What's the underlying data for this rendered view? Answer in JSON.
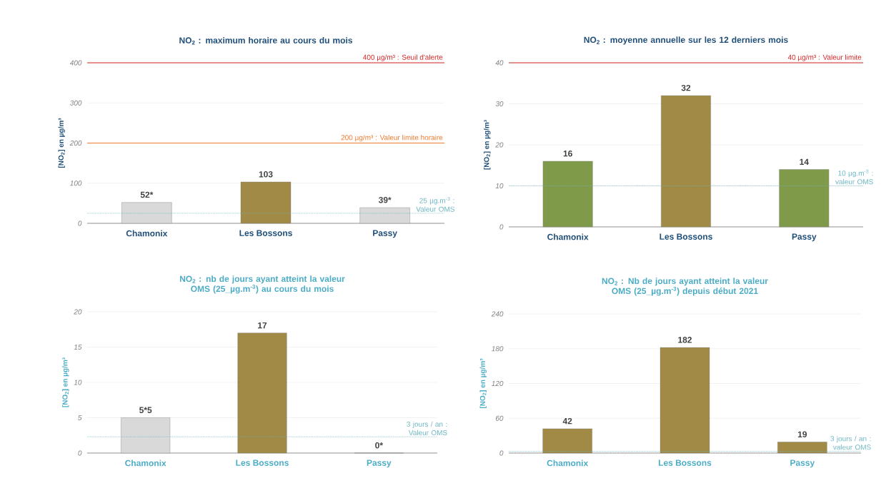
{
  "chart_data": [
    {
      "type": "bar",
      "title": "NO$_{2}$ : maximum horaire au cours du mois",
      "ylabel": "[NO$_{2}$] en µg/m³",
      "categories": [
        "Chamonix",
        "Les Bossons",
        "Passy"
      ],
      "values": [
        52,
        103,
        39
      ],
      "value_labels": [
        "52*",
        "103",
        "39*"
      ],
      "colors": [
        "#d9d9d9",
        "#a08a45",
        "#d9d9d9"
      ],
      "ylim": [
        0,
        400
      ],
      "yticks": [
        0,
        100,
        200,
        300,
        400
      ],
      "grid": "y",
      "ref_lines": [
        {
          "axis": "y",
          "value": 400,
          "label": "400 µg/m³ : Seuil d'alerte",
          "color": "#d62828",
          "line_style": "solid"
        },
        {
          "axis": "y",
          "value": 200,
          "label": "200 µg/m³ : Valeur limite horaire",
          "color": "#ed7d31",
          "line_style": "solid"
        },
        {
          "axis": "y",
          "value": 25,
          "label": "25 µg.m$^{-3}$ : Valeur OMS",
          "color": "#6fb7c4",
          "line_style": "dotted"
        }
      ]
    },
    {
      "type": "bar",
      "title": "NO$_{2}$ : moyenne annuelle sur les 12 derniers mois",
      "ylabel": "[NO$_{2}$] en µg/m³",
      "categories": [
        "Chamonix",
        "Les Bossons",
        "Passy"
      ],
      "values": [
        16,
        32,
        14
      ],
      "data_labels": true,
      "colors": [
        "#7f9a48",
        "#a08a45",
        "#7f9a48"
      ],
      "ylim": [
        0,
        40
      ],
      "yticks": [
        0,
        10,
        20,
        30,
        40
      ],
      "grid": "y",
      "ref_lines": [
        {
          "axis": "y",
          "value": 40,
          "label": "40 µg/m³ : Valeur limite",
          "color": "#d62828",
          "line_style": "solid"
        },
        {
          "axis": "y",
          "value": 10,
          "label": "10 µg.m$^{-3}$ : valeur OMS",
          "color": "#6fb7c4",
          "line_style": "dotted"
        }
      ]
    },
    {
      "type": "bar",
      "title": "NO$_{2}$ : nb de jours ayant atteint la valeur OMS (25_µg.m$^{-3}$) au cours du mois",
      "ylabel": "[NO$_{2}$] en µg/m³",
      "categories": [
        "Chamonix",
        "Les Bossons",
        "Passy"
      ],
      "values": [
        5,
        17,
        0
      ],
      "value_labels": [
        "5*5",
        "17",
        "0*"
      ],
      "colors": [
        "#d9d9d9",
        "#a08a45",
        "#d9d9d9"
      ],
      "ylim": [
        0,
        20
      ],
      "yticks": [
        0,
        5,
        10,
        15,
        20
      ],
      "grid": "y",
      "ref_lines": [
        {
          "axis": "y",
          "value": 2.3,
          "label": "3 jours / an : Valeur OMS",
          "color": "#6fb7c4",
          "line_style": "dotted"
        }
      ]
    },
    {
      "type": "bar",
      "title": "NO$_{2}$ : Nb de jours ayant atteint la valeur OMS (25_µg.m$^{-3}$) depuis début 2021",
      "ylabel": "[NO$_{2}$] en µg/m³",
      "categories": [
        "Chamonix",
        "Les Bossons",
        "Passy"
      ],
      "values": [
        42,
        182,
        19
      ],
      "data_labels": true,
      "colors": [
        "#a08a45",
        "#a08a45",
        "#a08a45"
      ],
      "ylim": [
        0,
        240
      ],
      "yticks": [
        0,
        60,
        120,
        180,
        240
      ],
      "grid": "y",
      "ref_lines": [
        {
          "axis": "y",
          "value": 3,
          "label": "3 jours / an : valeur OMS",
          "color": "#6fb7c4",
          "line_style": "dotted"
        }
      ]
    }
  ]
}
